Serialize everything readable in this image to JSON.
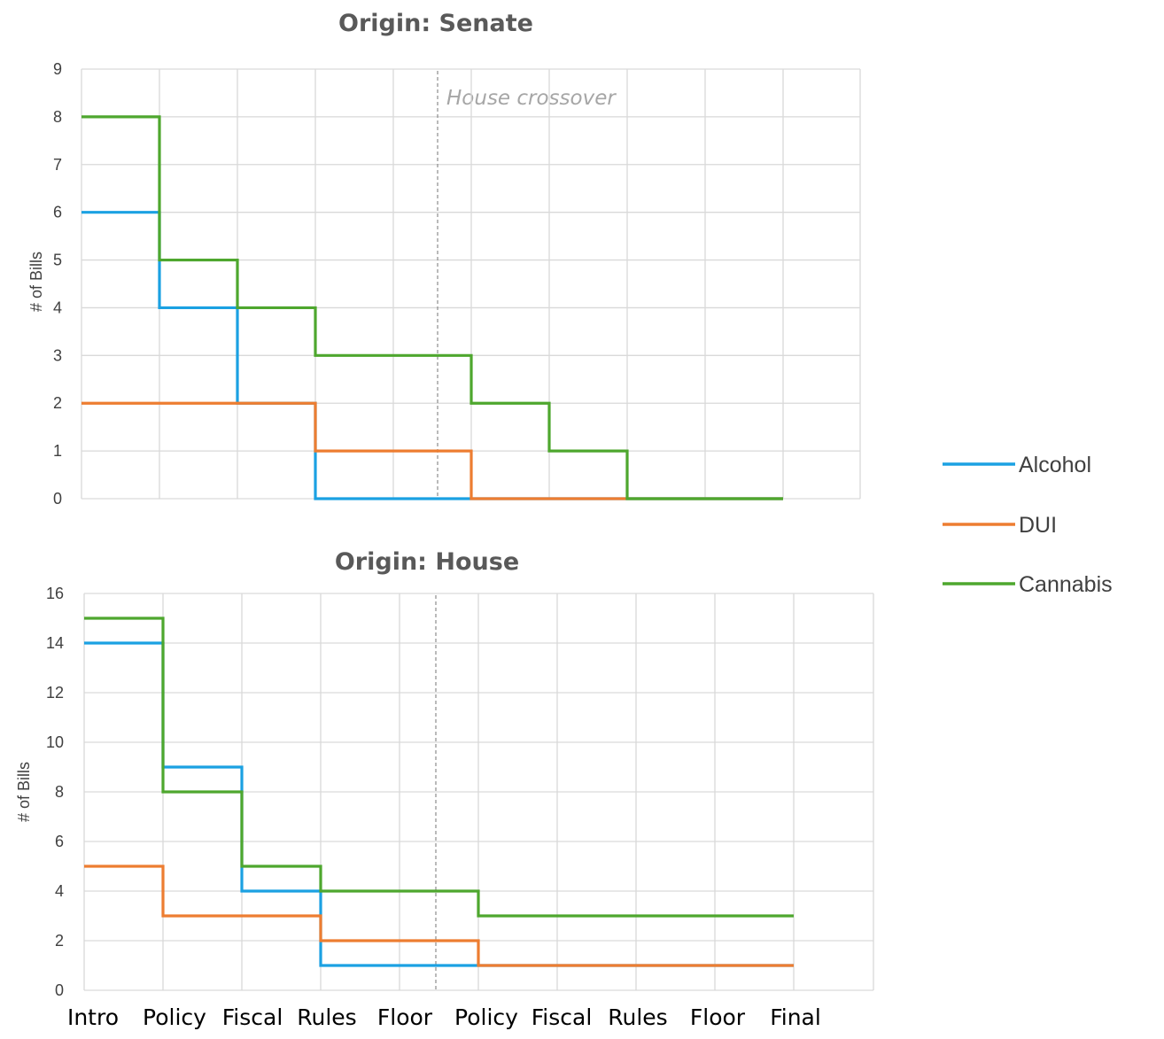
{
  "chart_data": [
    {
      "type": "line",
      "step": true,
      "title": "Origin: Senate",
      "ylabel": "# of Bills",
      "xlabel": "",
      "ylim": [
        0,
        9
      ],
      "yticks": [
        0,
        1,
        2,
        3,
        4,
        5,
        6,
        7,
        8,
        9
      ],
      "grid": true,
      "annotation": "House crossover",
      "categories": [
        "Intro",
        "Policy",
        "Fiscal",
        "Rules",
        "Floor",
        "Policy",
        "Fiscal",
        "Rules",
        "Floor",
        "Final"
      ],
      "series": [
        {
          "name": "Alcohol",
          "color": "#1ba1e2",
          "values": [
            6,
            4,
            2,
            0,
            0,
            0,
            0,
            0,
            0,
            0
          ]
        },
        {
          "name": "DUI",
          "color": "#ed7d31",
          "values": [
            2,
            2,
            2,
            1,
            1,
            0,
            0,
            0,
            0,
            0
          ]
        },
        {
          "name": "Cannabis",
          "color": "#4ea72e",
          "values": [
            8,
            5,
            4,
            3,
            3,
            2,
            1,
            0,
            0,
            0
          ]
        }
      ]
    },
    {
      "type": "line",
      "step": true,
      "title": "Origin: House",
      "ylabel": "# of Bills",
      "xlabel": "",
      "ylim": [
        0,
        16
      ],
      "yticks": [
        0,
        2,
        4,
        6,
        8,
        10,
        12,
        14,
        16
      ],
      "grid": true,
      "categories": [
        "Intro",
        "Policy",
        "Fiscal",
        "Rules",
        "Floor",
        "Policy",
        "Fiscal",
        "Rules",
        "Floor",
        "Final"
      ],
      "series": [
        {
          "name": "Alcohol",
          "color": "#1ba1e2",
          "values": [
            14,
            9,
            4,
            1,
            1,
            1,
            1,
            1,
            1,
            1
          ]
        },
        {
          "name": "DUI",
          "color": "#ed7d31",
          "values": [
            5,
            3,
            3,
            2,
            2,
            1,
            1,
            1,
            1,
            1
          ]
        },
        {
          "name": "Cannabis",
          "color": "#4ea72e",
          "values": [
            15,
            8,
            5,
            4,
            4,
            3,
            3,
            3,
            3,
            3
          ]
        }
      ]
    }
  ],
  "legend": {
    "placement": "right",
    "items": [
      {
        "label": "Alcohol",
        "color": "#1ba1e2"
      },
      {
        "label": "DUI",
        "color": "#ed7d31"
      },
      {
        "label": "Cannabis",
        "color": "#4ea72e"
      }
    ]
  },
  "x_axis_labels": [
    "Intro",
    "Policy",
    "Fiscal",
    "Rules",
    "Floor",
    "Policy",
    "Fiscal",
    "Rules",
    "Floor",
    "Final"
  ]
}
